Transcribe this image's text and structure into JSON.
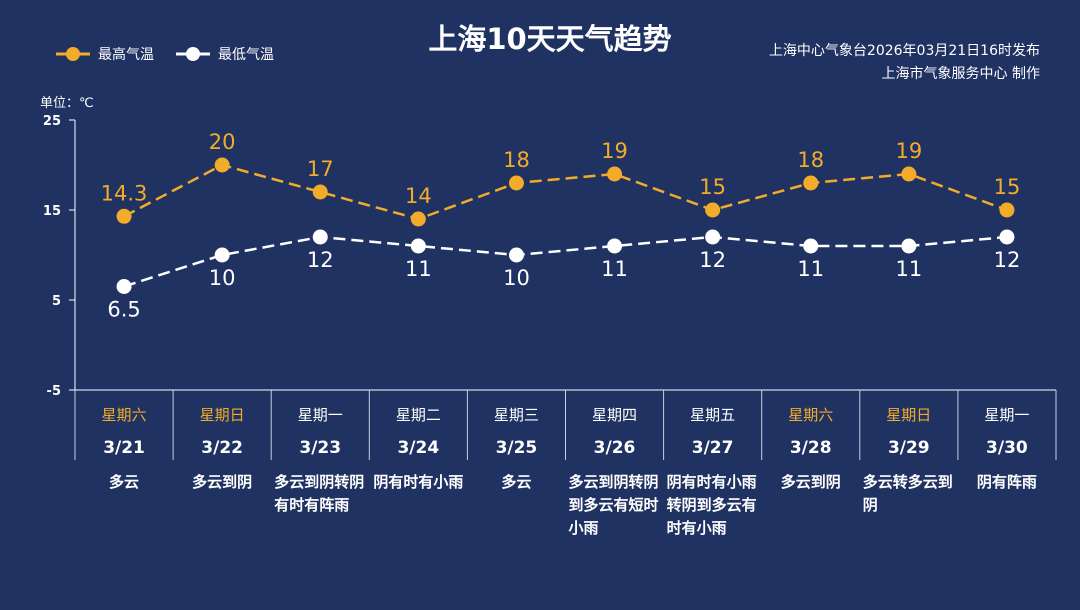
{
  "title": "上海10天天气趋势",
  "source": [
    "上海中心气象台2026年03月21日16时发布",
    "上海市气象服务中心 制作"
  ],
  "unit_label": "单位：℃",
  "colors": {
    "background": "#1f3261",
    "high": "#f2ac2a",
    "low": "#ffffff"
  },
  "chart_data": {
    "type": "line",
    "title": "上海10天天气趋势",
    "ylabel": "单位：℃",
    "ylim": [
      -5,
      25
    ],
    "yticks": [
      25,
      15,
      5,
      -5
    ],
    "grid": false,
    "legend": "top-left",
    "categories": [
      "3/21",
      "3/22",
      "3/23",
      "3/24",
      "3/25",
      "3/26",
      "3/27",
      "3/28",
      "3/29",
      "3/30"
    ],
    "weekdays": [
      "星期六",
      "星期日",
      "星期一",
      "星期二",
      "星期三",
      "星期四",
      "星期五",
      "星期六",
      "星期日",
      "星期一"
    ],
    "weekend": [
      true,
      true,
      false,
      false,
      false,
      false,
      false,
      true,
      true,
      false
    ],
    "weather": [
      "多云",
      "多云到阴",
      "多云到阴转阴有时有阵雨",
      "阴有时有小雨",
      "多云",
      "多云到阴转阴到多云有短时小雨",
      "阴有时有小雨转阴到多云有时有小雨",
      "多云到阴",
      "多云转多云到阴",
      "阴有阵雨"
    ],
    "series": [
      {
        "name": "最高气温",
        "color": "#f2ac2a",
        "values": [
          14.3,
          20,
          17,
          14,
          18,
          19,
          15,
          18,
          19,
          15
        ]
      },
      {
        "name": "最低气温",
        "color": "#ffffff",
        "values": [
          6.5,
          10,
          12,
          11,
          10,
          11,
          12,
          11,
          11,
          12
        ]
      }
    ]
  }
}
